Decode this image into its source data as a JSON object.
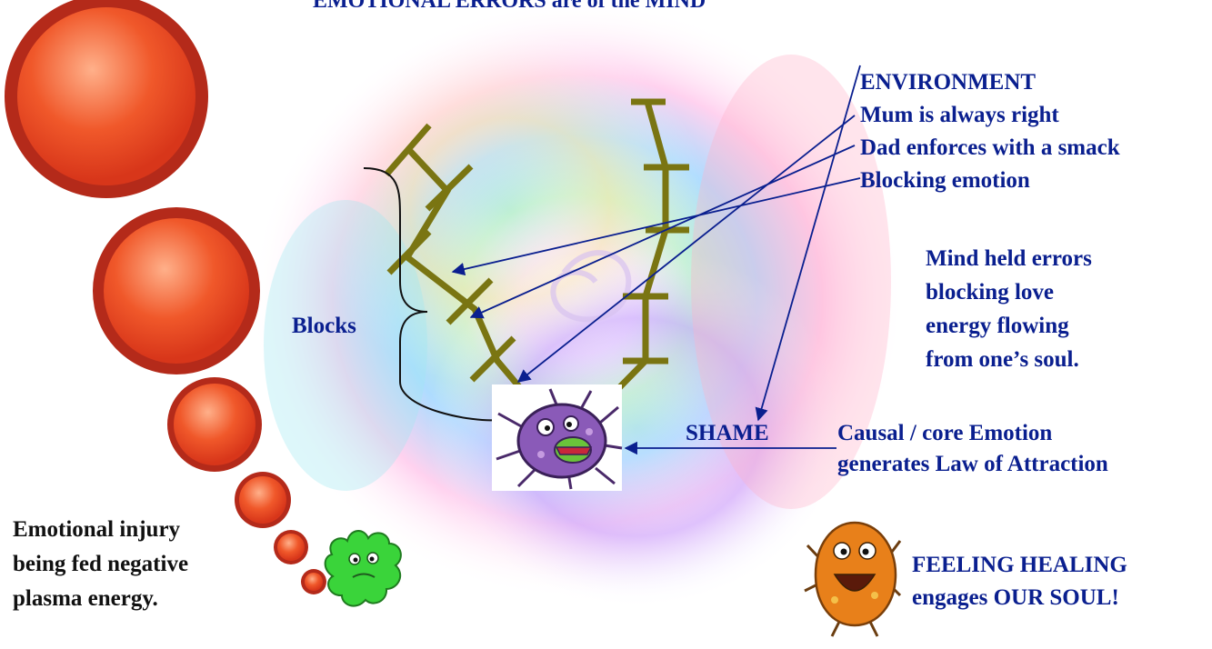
{
  "title": "EMOTIONAL ERRORS are of the MIND",
  "environment": {
    "lines": [
      "ENVIRONMENT",
      "Mum is always right",
      "Dad enforces with a smack",
      "Blocking emotion"
    ]
  },
  "mind_note": {
    "lines": [
      "Mind held errors",
      "blocking love",
      "energy flowing",
      "from one’s soul."
    ]
  },
  "blocks_label": "Blocks",
  "shame_label": "SHAME",
  "causal": {
    "lines": [
      "Causal / core Emotion",
      "generates Law of Attraction"
    ]
  },
  "injury": {
    "lines": [
      "Emotional injury",
      "being fed negative",
      "plasma energy."
    ]
  },
  "healing": {
    "lines": [
      "FEELING HEALING",
      "engages OUR SOUL!"
    ]
  },
  "colors": {
    "navy_text": "#0a1f8f",
    "black_text": "#111111",
    "arrow": "#0a1f8f",
    "block_stroke": "#7a7512",
    "bubble_red": "#e8401a",
    "bubble_rim": "#b42a1a",
    "green_creature": "#3ad43a",
    "purple_creature": "#8a5ab8",
    "orange_creature": "#e8801a"
  },
  "icons": [
    "purple-germ-icon",
    "green-germ-icon",
    "orange-creature-icon"
  ]
}
